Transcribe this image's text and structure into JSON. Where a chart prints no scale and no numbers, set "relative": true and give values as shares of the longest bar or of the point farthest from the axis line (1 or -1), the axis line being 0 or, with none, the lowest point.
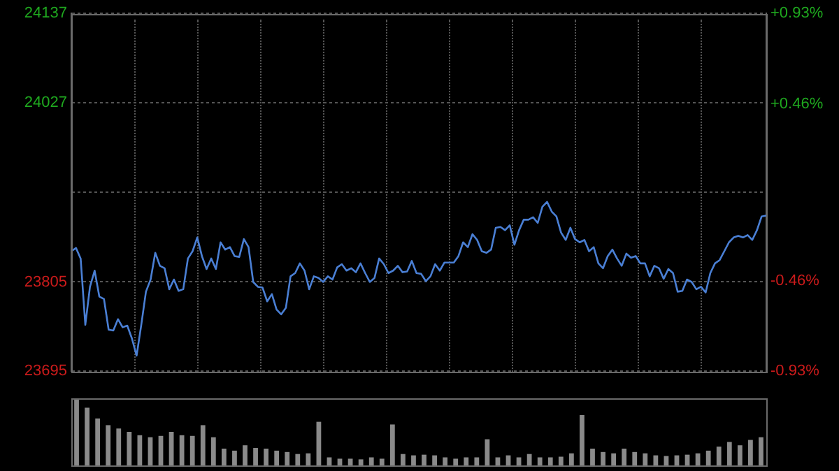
{
  "chart_data": [
    {
      "type": "line",
      "categories": [
        null,
        null,
        null,
        null,
        null,
        null,
        null,
        null,
        null,
        null,
        null,
        null,
        null,
        null,
        null,
        null,
        null,
        null,
        null,
        null,
        null,
        null,
        null,
        null,
        null,
        null,
        null,
        null,
        null,
        null,
        null,
        null,
        null,
        null,
        null,
        null,
        null,
        null,
        null,
        null,
        null,
        null,
        null,
        null,
        null,
        null,
        null,
        null,
        null,
        null,
        null,
        null,
        null,
        null,
        null,
        null,
        null,
        null,
        null,
        null,
        null,
        null,
        null,
        null,
        null,
        null,
        null,
        null,
        null,
        null,
        null,
        null,
        null,
        null,
        null,
        null,
        null,
        null,
        null,
        null,
        null,
        null,
        null,
        null,
        null,
        null,
        null,
        null,
        null,
        null,
        null,
        null,
        null,
        null,
        null,
        null,
        null,
        null,
        null,
        null,
        null,
        null,
        null,
        null,
        null,
        null,
        null,
        null,
        null,
        null,
        null,
        null,
        null,
        null,
        null,
        null,
        null,
        null,
        null,
        null,
        null,
        null,
        null,
        null,
        null,
        null,
        null,
        null,
        null,
        null,
        null,
        null,
        null,
        null,
        null,
        null,
        null,
        null,
        null,
        null,
        null,
        null,
        null,
        null,
        null,
        null,
        null,
        null,
        null,
        null
      ],
      "values": [
        23843,
        23847,
        23834,
        23752,
        23799,
        23819,
        23787,
        23784,
        23746,
        23745,
        23759,
        23749,
        23751,
        23735,
        23714,
        23752,
        23793,
        23808,
        23841,
        23825,
        23822,
        23796,
        23808,
        23794,
        23796,
        23834,
        23843,
        23860,
        23837,
        23821,
        23834,
        23821,
        23854,
        23845,
        23848,
        23837,
        23836,
        23858,
        23848,
        23805,
        23799,
        23798,
        23781,
        23790,
        23771,
        23765,
        23773,
        23812,
        23816,
        23828,
        23819,
        23796,
        23812,
        23810,
        23805,
        23812,
        23808,
        23823,
        23827,
        23819,
        23822,
        23817,
        23828,
        23816,
        23805,
        23810,
        23834,
        23827,
        23816,
        23819,
        23825,
        23817,
        23818,
        23831,
        23816,
        23815,
        23806,
        23812,
        23827,
        23819,
        23829,
        23829,
        23829,
        23837,
        23854,
        23848,
        23864,
        23857,
        23843,
        23841,
        23845,
        23872,
        23873,
        23869,
        23875,
        23851,
        23869,
        23882,
        23882,
        23885,
        23878,
        23898,
        23904,
        23892,
        23886,
        23866,
        23857,
        23872,
        23858,
        23854,
        23857,
        23843,
        23848,
        23828,
        23822,
        23837,
        23845,
        23834,
        23825,
        23840,
        23835,
        23837,
        23828,
        23828,
        23812,
        23825,
        23822,
        23809,
        23821,
        23816,
        23793,
        23794,
        23808,
        23805,
        23796,
        23799,
        23792,
        23816,
        23828,
        23832,
        23843,
        23854,
        23860,
        23862,
        23860,
        23863,
        23857,
        23869,
        23886,
        23887
      ],
      "color": "#4a7fd4",
      "ylim": [
        23695,
        24137
      ],
      "yticks": [
        23695,
        23805,
        {
          "value": 23916,
          "label": null
        },
        24027,
        24137
      ],
      "y2lim": [
        -0.93,
        0.93
      ],
      "y2ticks": [
        {
          "value": -0.93,
          "label": "-0.93%"
        },
        {
          "value": -0.46,
          "label": "-0.46%"
        },
        {
          "value": 0.46,
          "label": "+0.46%"
        },
        {
          "value": 0.93,
          "label": "+0.93%"
        }
      ],
      "grid": "y",
      "legend": false
    },
    {
      "type": "bar",
      "relative": true,
      "color": "#8a8a8a",
      "categories": [
        null,
        null,
        null,
        null,
        null,
        null,
        null,
        null,
        null,
        null,
        null,
        null,
        null,
        null,
        null,
        null,
        null,
        null,
        null,
        null,
        null,
        null,
        null,
        null,
        null,
        null,
        null,
        null,
        null,
        null,
        null,
        null,
        null,
        null,
        null,
        null,
        null,
        null,
        null,
        null,
        null,
        null,
        null,
        null,
        null,
        null,
        null,
        null,
        null,
        null,
        null,
        null,
        null,
        null,
        null,
        null,
        null,
        null,
        null,
        null,
        null,
        null,
        null,
        null,
        null,
        null
      ],
      "values": [
        1,
        0.86,
        0.7,
        0.6,
        0.55,
        0.5,
        0.45,
        0.42,
        0.44,
        0.5,
        0.45,
        0.44,
        0.6,
        0.42,
        0.25,
        0.22,
        0.3,
        0.26,
        0.25,
        0.22,
        0.2,
        0.17,
        0.18,
        0.65,
        0.12,
        0.1,
        0.1,
        0.09,
        0.12,
        0.1,
        0.61,
        0.17,
        0.15,
        0.16,
        0.15,
        0.12,
        0.1,
        0.12,
        0.12,
        0.39,
        0.12,
        0.15,
        0.12,
        0.17,
        0.12,
        0.12,
        0.13,
        0.18,
        0.75,
        0.25,
        0.2,
        0.18,
        0.25,
        0.2,
        0.18,
        0.15,
        0.14,
        0.15,
        0.16,
        0.18,
        0.22,
        0.28,
        0.35,
        0.3,
        0.38,
        0.42
      ],
      "legend": false
    }
  ]
}
